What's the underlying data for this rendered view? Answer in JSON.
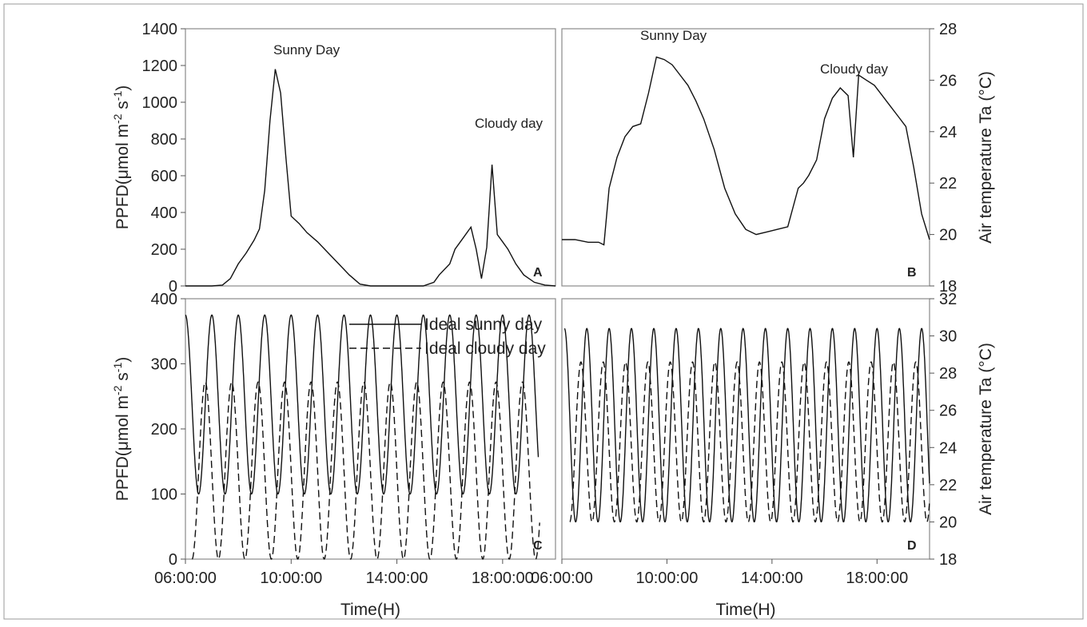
{
  "chart_data": [
    {
      "panel": "A",
      "type": "line",
      "ylabel": "PPFD(μmol m⁻² s⁻¹)",
      "ylim": [
        0,
        1400
      ],
      "yticks": [
        0,
        200,
        400,
        600,
        800,
        1000,
        1200,
        1400
      ],
      "xlim": [
        6,
        20
      ],
      "annotations": [
        "Sunny Day",
        "Cloudy day"
      ],
      "series": [
        {
          "x": [
            6,
            7,
            7.4,
            7.7,
            8,
            8.3,
            8.6,
            8.8,
            9.0,
            9.2,
            9.4,
            9.6,
            9.8,
            10.0,
            10.3,
            10.6,
            11.0,
            11.4,
            11.8,
            12.2,
            12.6,
            13,
            14,
            15,
            15.4,
            15.6,
            16,
            16.2,
            16.5,
            16.8,
            17.0,
            17.2,
            17.4,
            17.6,
            17.8,
            18.0,
            18.2,
            18.5,
            18.8,
            19.2,
            19.6,
            20
          ],
          "values": [
            0,
            0,
            5,
            40,
            120,
            180,
            250,
            310,
            520,
            900,
            1180,
            1050,
            700,
            380,
            340,
            290,
            240,
            180,
            120,
            60,
            10,
            0,
            0,
            0,
            20,
            60,
            120,
            200,
            260,
            320,
            200,
            40,
            210,
            660,
            280,
            240,
            200,
            120,
            60,
            20,
            5,
            0
          ]
        }
      ]
    },
    {
      "panel": "B",
      "type": "line",
      "ylabel": "Air temperature Ta (°C)",
      "ylim": [
        18,
        28
      ],
      "yticks": [
        18,
        20,
        22,
        24,
        26,
        28
      ],
      "xlim": [
        6,
        20
      ],
      "annotations": [
        "Sunny Day",
        "Cloudy day"
      ],
      "series": [
        {
          "x": [
            6,
            6.5,
            7,
            7.4,
            7.6,
            7.8,
            8.1,
            8.4,
            8.7,
            9.0,
            9.3,
            9.6,
            9.9,
            10.2,
            10.5,
            10.8,
            11.1,
            11.4,
            11.8,
            12.2,
            12.6,
            13.0,
            13.4,
            13.8,
            14.2,
            14.6,
            15.0,
            15.2,
            15.4,
            15.7,
            16.0,
            16.3,
            16.6,
            16.9,
            17.1,
            17.3,
            17.6,
            17.9,
            18.2,
            18.5,
            18.8,
            19.1,
            19.4,
            19.7,
            20
          ],
          "values": [
            19.8,
            19.8,
            19.7,
            19.7,
            19.6,
            21.8,
            23.0,
            23.8,
            24.2,
            24.3,
            25.5,
            26.9,
            26.8,
            26.6,
            26.2,
            25.8,
            25.2,
            24.5,
            23.3,
            21.8,
            20.8,
            20.2,
            20.0,
            20.1,
            20.2,
            20.3,
            21.8,
            22.0,
            22.3,
            22.9,
            24.5,
            25.3,
            25.7,
            25.4,
            23.0,
            26.2,
            26.0,
            25.8,
            25.4,
            25.0,
            24.6,
            24.2,
            22.6,
            20.8,
            19.8
          ]
        }
      ]
    },
    {
      "panel": "C",
      "type": "line",
      "ylabel": "PPFD(μmol m⁻² s⁻¹)",
      "xlabel": "Time(H)",
      "ylim": [
        0,
        400
      ],
      "yticks": [
        0,
        100,
        200,
        300,
        400
      ],
      "xlim": [
        6,
        20
      ],
      "xtick_labels": [
        "06:00:00",
        "10:00:00",
        "14:00:00",
        "18:00:00"
      ],
      "legend": {
        "placement": "top-right",
        "entries": [
          "Ideal sunny day",
          "Ideal cloudy day"
        ]
      },
      "series": [
        {
          "name": "Ideal sunny day",
          "style": "solid",
          "waveform": "sinusoid",
          "min": 100,
          "max": 375,
          "period_h": 1.0,
          "x_start": 6,
          "x_end": 19.35
        },
        {
          "name": "Ideal cloudy day",
          "style": "dashed",
          "waveform": "sinusoid",
          "min": 0,
          "max": 272,
          "period_h": 1.0,
          "x_start": 6.25,
          "x_end": 19.4
        }
      ]
    },
    {
      "panel": "D",
      "type": "line",
      "ylabel": "Air temperature Ta (°C)",
      "xlabel": "Time(H)",
      "ylim": [
        18,
        32
      ],
      "yticks": [
        18,
        20,
        22,
        24,
        26,
        28,
        30,
        32
      ],
      "xlim": [
        6,
        20
      ],
      "xtick_labels": [
        "06:00:00",
        "10:00:00",
        "14:00:00",
        "18:00:00"
      ],
      "series": [
        {
          "name": "Ideal sunny day",
          "style": "solid",
          "waveform": "sinusoid",
          "min": 20.0,
          "max": 30.4,
          "period_h": 0.85,
          "x_start": 6.1,
          "x_end": 20
        },
        {
          "name": "Ideal cloudy day",
          "style": "dashed",
          "waveform": "sinusoid",
          "min": 20.0,
          "max": 28.6,
          "period_h": 0.85,
          "x_start": 6.3,
          "x_end": 20
        }
      ]
    }
  ]
}
